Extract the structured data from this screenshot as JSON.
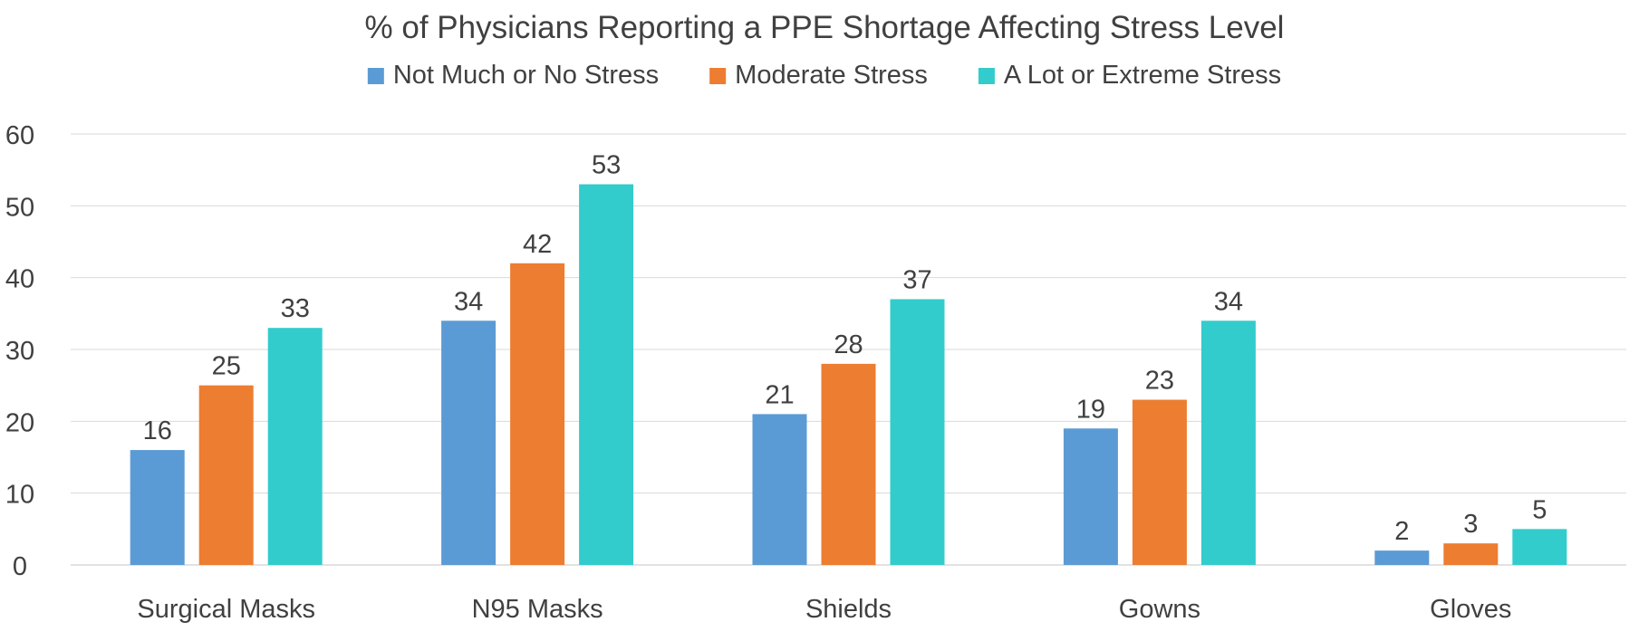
{
  "chart_data": {
    "type": "bar",
    "title": "% of Physicians Reporting a PPE Shortage Affecting Stress Level",
    "xlabel": "",
    "ylabel": "",
    "ylim": [
      0,
      60
    ],
    "yticks": [
      0,
      10,
      20,
      30,
      40,
      50,
      60
    ],
    "grid": true,
    "legend_position": "top",
    "categories": [
      "Surgical Masks",
      "N95 Masks",
      "Shields",
      "Gowns",
      "Gloves"
    ],
    "series": [
      {
        "name": "Not Much or No Stress",
        "color": "#5B9BD5",
        "values": [
          16,
          34,
          21,
          19,
          2
        ]
      },
      {
        "name": "Moderate Stress",
        "color": "#ED7D31",
        "values": [
          25,
          42,
          28,
          23,
          3
        ]
      },
      {
        "name": "A Lot or Extreme Stress",
        "color": "#33CCCC",
        "values": [
          33,
          53,
          37,
          34,
          5
        ]
      }
    ],
    "text_color": "#404040",
    "grid_color": "#D9D9D9"
  }
}
